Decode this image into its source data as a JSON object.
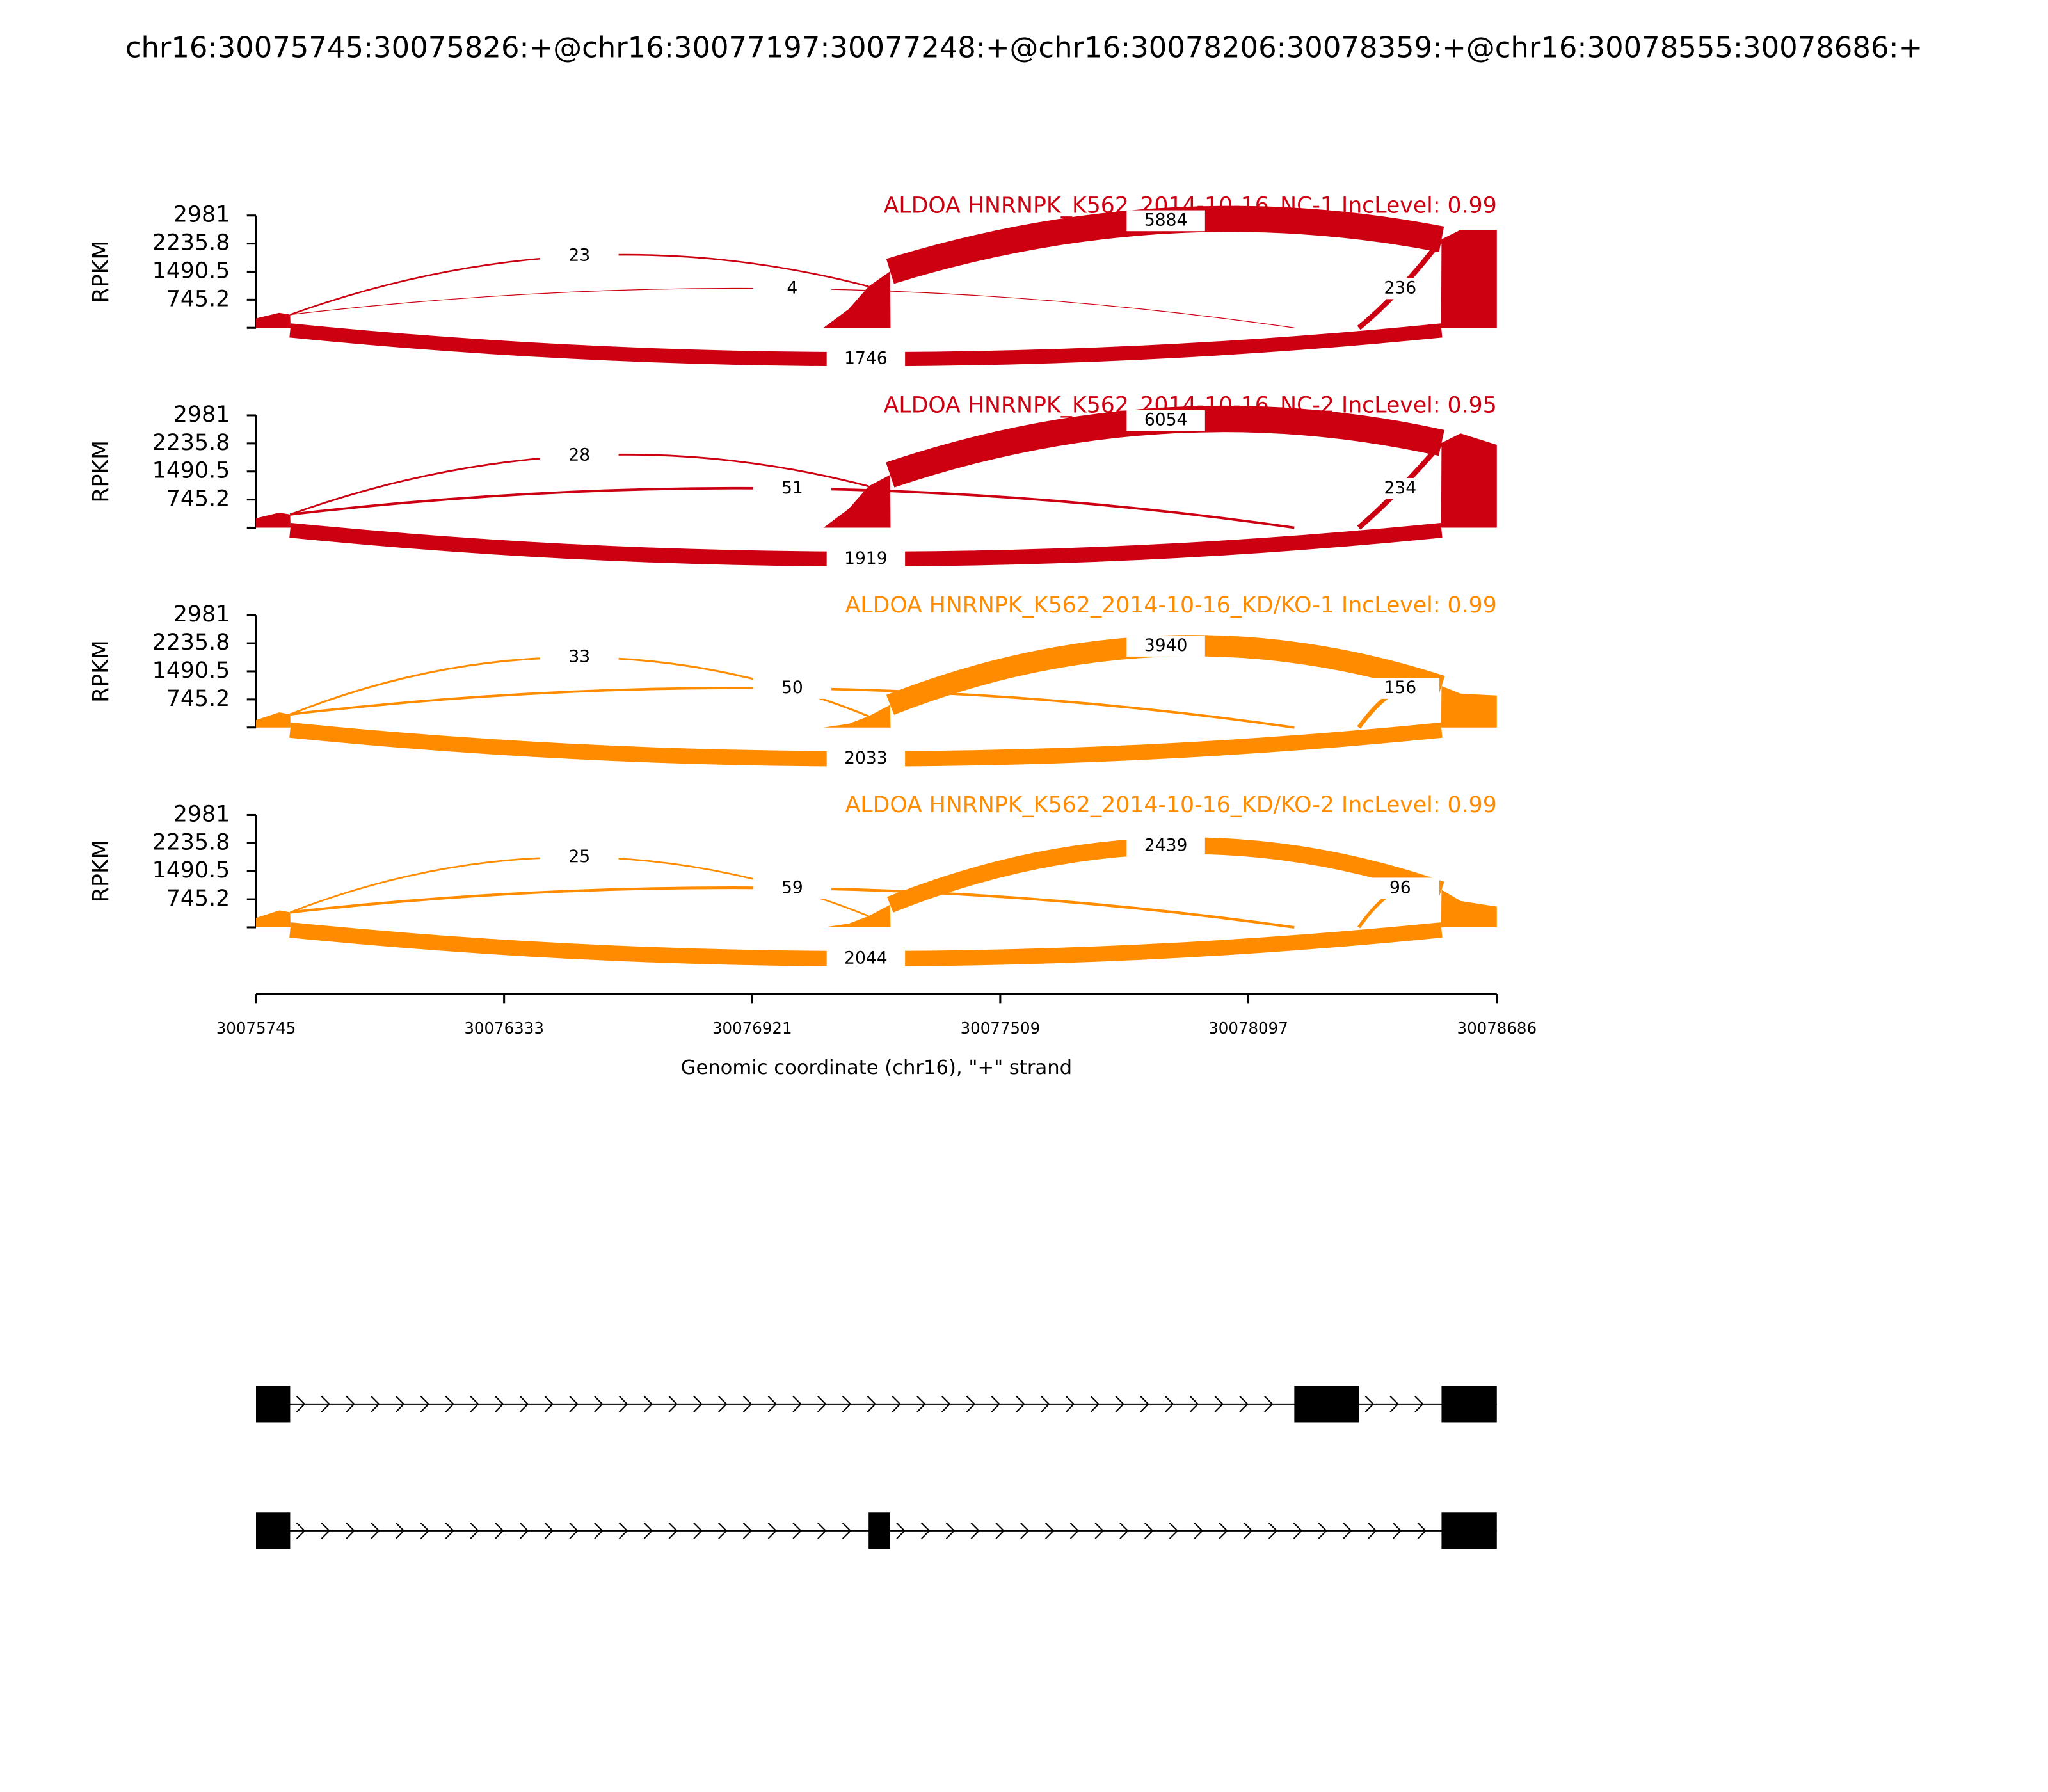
{
  "chart_data": {
    "type": "sashimi",
    "title": "chr16:30075745:30075826:+@chr16:30077197:30077248:+@chr16:30078206:30078359:+@chr16:30078555:30078686:+",
    "xlabel": "Genomic coordinate (chr16), \"+\" strand",
    "ylabel": "RPKM",
    "xlim": [
      30075745,
      30078686
    ],
    "xticks": [
      30075745,
      30076333,
      30076921,
      30077509,
      30078097,
      30078686
    ],
    "ylim": [
      0,
      2981
    ],
    "yticks": [
      745.2,
      1490.5,
      2235.8,
      2981
    ],
    "tracks": [
      {
        "name": "ALDOA HNRNPK_K562_2014-10-16_NC-1 IncLevel: 0.99",
        "color": "#cc0011",
        "coverage": {
          "x": [
            30075745,
            30075745,
            30075800,
            30075826,
            30075827,
            30077090,
            30077150,
            30077197,
            30077248,
            30077249,
            30078554,
            30078555,
            30078600,
            30078686,
            30078686
          ],
          "values": [
            0,
            250,
            400,
            350,
            0,
            0,
            500,
            1100,
            1500,
            0,
            0,
            2350,
            2600,
            2600,
            0
          ]
        },
        "junctions": [
          {
            "start": 30075826,
            "end": 30077197,
            "count": 23
          },
          {
            "start": 30075826,
            "end": 30078206,
            "count": 4
          },
          {
            "start": 30075826,
            "end": 30078555,
            "count": 1746
          },
          {
            "start": 30077248,
            "end": 30078555,
            "count": 5884
          },
          {
            "start": 30078359,
            "end": 30078555,
            "count": 236
          }
        ]
      },
      {
        "name": "ALDOA HNRNPK_K562_2014-10-16_NC-2 IncLevel: 0.95",
        "color": "#cc0011",
        "coverage": {
          "x": [
            30075745,
            30075745,
            30075800,
            30075826,
            30075827,
            30077090,
            30077150,
            30077197,
            30077248,
            30077249,
            30078554,
            30078555,
            30078600,
            30078686,
            30078686
          ],
          "values": [
            0,
            250,
            400,
            350,
            0,
            0,
            500,
            1100,
            1400,
            0,
            0,
            2250,
            2500,
            2200,
            0
          ]
        },
        "junctions": [
          {
            "start": 30075826,
            "end": 30077197,
            "count": 28
          },
          {
            "start": 30075826,
            "end": 30078206,
            "count": 51
          },
          {
            "start": 30075826,
            "end": 30078555,
            "count": 1919
          },
          {
            "start": 30077248,
            "end": 30078555,
            "count": 6054
          },
          {
            "start": 30078359,
            "end": 30078555,
            "count": 234
          }
        ]
      },
      {
        "name": "ALDOA HNRNPK_K562_2014-10-16_KD/KO-1 IncLevel: 0.99",
        "color": "#ff8c00",
        "coverage": {
          "x": [
            30075745,
            30075745,
            30075800,
            30075826,
            30075827,
            30077090,
            30077150,
            30077197,
            30077248,
            30077249,
            30078554,
            30078555,
            30078600,
            30078686,
            30078686
          ],
          "values": [
            0,
            200,
            400,
            350,
            0,
            0,
            100,
            300,
            600,
            0,
            0,
            1100,
            900,
            850,
            0
          ]
        },
        "junctions": [
          {
            "start": 30075826,
            "end": 30077197,
            "count": 33
          },
          {
            "start": 30075826,
            "end": 30078206,
            "count": 50
          },
          {
            "start": 30075826,
            "end": 30078555,
            "count": 2033
          },
          {
            "start": 30077248,
            "end": 30078555,
            "count": 3940
          },
          {
            "start": 30078359,
            "end": 30078555,
            "count": 156
          }
        ]
      },
      {
        "name": "ALDOA HNRNPK_K562_2014-10-16_KD/KO-2 IncLevel: 0.99",
        "color": "#ff8c00",
        "coverage": {
          "x": [
            30075745,
            30075745,
            30075800,
            30075826,
            30075827,
            30077090,
            30077150,
            30077197,
            30077248,
            30077249,
            30078554,
            30078555,
            30078600,
            30078686,
            30078686
          ],
          "values": [
            0,
            250,
            450,
            400,
            0,
            0,
            100,
            300,
            600,
            0,
            0,
            1000,
            700,
            550,
            0
          ]
        },
        "junctions": [
          {
            "start": 30075826,
            "end": 30077197,
            "count": 25
          },
          {
            "start": 30075826,
            "end": 30078206,
            "count": 59
          },
          {
            "start": 30075826,
            "end": 30078555,
            "count": 2044
          },
          {
            "start": 30077248,
            "end": 30078555,
            "count": 2439
          },
          {
            "start": 30078359,
            "end": 30078555,
            "count": 96
          }
        ]
      }
    ],
    "transcripts": [
      {
        "exons": [
          [
            30075745,
            30075826
          ],
          [
            30078206,
            30078359
          ],
          [
            30078555,
            30078686
          ]
        ]
      },
      {
        "exons": [
          [
            30075745,
            30075826
          ],
          [
            30077197,
            30077248
          ],
          [
            30078555,
            30078686
          ]
        ]
      }
    ]
  }
}
